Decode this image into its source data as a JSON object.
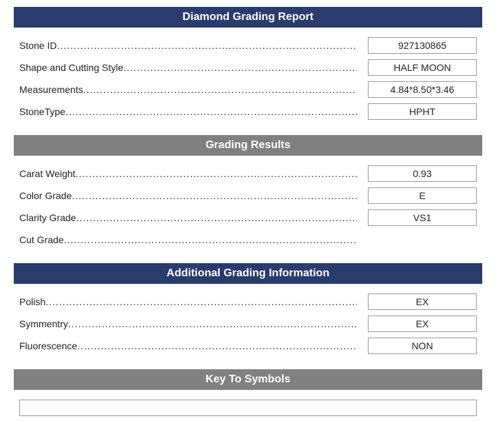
{
  "colors": {
    "navy": "#283c6e",
    "gray": "#808080",
    "text": "#222222",
    "border": "#999999",
    "background": "#ffffff"
  },
  "fonts": {
    "header_size": 16,
    "body_size": 14,
    "family": "Arial, sans-serif"
  },
  "sections": {
    "report": {
      "title": "Diamond Grading Report",
      "header_style": "navy",
      "rows": [
        {
          "label": "Stone ID",
          "value": "927130865"
        },
        {
          "label": "Shape and Cutting Style",
          "value": "HALF MOON"
        },
        {
          "label": "Measurements",
          "value": "4.84*8.50*3.46"
        },
        {
          "label": "StoneType",
          "value": "HPHT"
        }
      ]
    },
    "grading": {
      "title": "Grading Results",
      "header_style": "gray",
      "rows": [
        {
          "label": "Carat Weight",
          "value": "0.93"
        },
        {
          "label": "Color Grade",
          "value": "E"
        },
        {
          "label": "Clarity Grade",
          "value": "VS1"
        },
        {
          "label": "Cut Grade",
          "value": ""
        }
      ]
    },
    "additional": {
      "title": "Additional Grading Information",
      "header_style": "navy",
      "rows": [
        {
          "label": "Polish",
          "value": "EX"
        },
        {
          "label": "Symmentry",
          "value": "EX"
        },
        {
          "label": "Fluorescence",
          "value": "NON"
        }
      ]
    },
    "symbols": {
      "title": "Key To Symbols",
      "header_style": "gray"
    }
  }
}
